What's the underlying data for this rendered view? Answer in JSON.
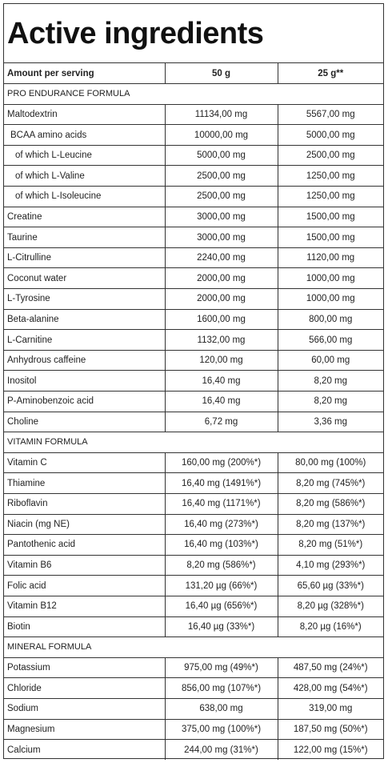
{
  "title": "Active ingredients",
  "header": {
    "label": "Amount per serving",
    "col1": "50 g",
    "col2": "25 g**"
  },
  "sections": [
    {
      "name": "PRO ENDURANCE FORMULA",
      "rows": [
        {
          "name": "Maltodextrin",
          "v1": "11134,00 mg",
          "v2": "5567,00 mg",
          "indent": 0
        },
        {
          "name": "BCAA amino acids",
          "v1": "10000,00 mg",
          "v2": "5000,00 mg",
          "indent": 1
        },
        {
          "name": "of which L-Leucine",
          "v1": "5000,00 mg",
          "v2": "2500,00 mg",
          "indent": 2
        },
        {
          "name": "of which L-Valine",
          "v1": "2500,00 mg",
          "v2": "1250,00 mg",
          "indent": 2
        },
        {
          "name": "of which L-Isoleucine",
          "v1": "2500,00 mg",
          "v2": "1250,00 mg",
          "indent": 2
        },
        {
          "name": "Creatine",
          "v1": "3000,00 mg",
          "v2": "1500,00 mg",
          "indent": 0
        },
        {
          "name": "Taurine",
          "v1": "3000,00 mg",
          "v2": "1500,00 mg",
          "indent": 0
        },
        {
          "name": "L-Citrulline",
          "v1": "2240,00 mg",
          "v2": "1120,00 mg",
          "indent": 0
        },
        {
          "name": "Coconut water",
          "v1": "2000,00 mg",
          "v2": "1000,00 mg",
          "indent": 0
        },
        {
          "name": "L-Tyrosine",
          "v1": "2000,00 mg",
          "v2": "1000,00 mg",
          "indent": 0
        },
        {
          "name": "Beta-alanine",
          "v1": "1600,00 mg",
          "v2": "800,00 mg",
          "indent": 0
        },
        {
          "name": "L-Carnitine",
          "v1": "1132,00 mg",
          "v2": "566,00 mg",
          "indent": 0
        },
        {
          "name": "Anhydrous caffeine",
          "v1": "120,00 mg",
          "v2": "60,00 mg",
          "indent": 0
        },
        {
          "name": "Inositol",
          "v1": "16,40 mg",
          "v2": "8,20 mg",
          "indent": 0
        },
        {
          "name": "P-Aminobenzoic acid",
          "v1": "16,40 mg",
          "v2": "8,20 mg",
          "indent": 0
        },
        {
          "name": "Choline",
          "v1": "6,72 mg",
          "v2": "3,36 mg",
          "indent": 0
        }
      ]
    },
    {
      "name": "VITAMIN FORMULA",
      "rows": [
        {
          "name": "Vitamin C",
          "v1": "160,00 mg (200%*)",
          "v2": "80,00 mg (100%)",
          "indent": 0
        },
        {
          "name": "Thiamine",
          "v1": "16,40 mg (1491%*)",
          "v2": "8,20 mg (745%*)",
          "indent": 0
        },
        {
          "name": "Riboflavin",
          "v1": "16,40 mg (1171%*)",
          "v2": "8,20 mg (586%*)",
          "indent": 0
        },
        {
          "name": "Niacin (mg NE)",
          "v1": "16,40 mg (273%*)",
          "v2": "8,20 mg (137%*)",
          "indent": 0
        },
        {
          "name": "Pantothenic acid",
          "v1": "16,40 mg (103%*)",
          "v2": "8,20 mg (51%*)",
          "indent": 0
        },
        {
          "name": "Vitamin B6",
          "v1": "8,20 mg (586%*)",
          "v2": "4,10 mg (293%*)",
          "indent": 0
        },
        {
          "name": "Folic acid",
          "v1": "131,20 µg (66%*)",
          "v2": "65,60 µg (33%*)",
          "indent": 0
        },
        {
          "name": "Vitamin B12",
          "v1": "16,40 µg (656%*)",
          "v2": "8,20 µg (328%*)",
          "indent": 0
        },
        {
          "name": "Biotin",
          "v1": "16,40 µg (33%*)",
          "v2": "8,20 µg (16%*)",
          "indent": 0
        }
      ]
    },
    {
      "name": "MINERAL FORMULA",
      "rows": [
        {
          "name": "Potassium",
          "v1": "975,00 mg (49%*)",
          "v2": "487,50 mg (24%*)",
          "indent": 0
        },
        {
          "name": "Chloride",
          "v1": "856,00 mg (107%*)",
          "v2": "428,00 mg (54%*)",
          "indent": 0
        },
        {
          "name": "Sodium",
          "v1": "638,00 mg",
          "v2": "319,00 mg",
          "indent": 0
        },
        {
          "name": "Magnesium",
          "v1": "375,00 mg (100%*)",
          "v2": "187,50 mg (50%*)",
          "indent": 0
        },
        {
          "name": "Calcium",
          "v1": "244,00 mg (31%*)",
          "v2": "122,00 mg (15%*)",
          "indent": 0
        }
      ]
    }
  ]
}
